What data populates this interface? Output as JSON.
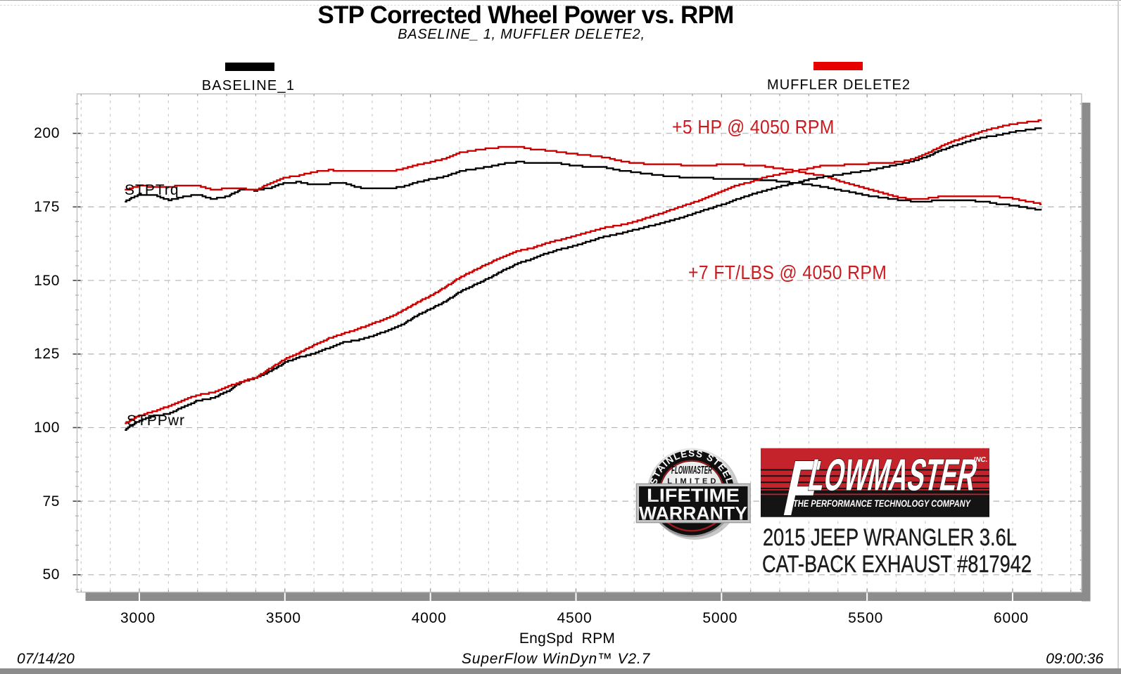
{
  "page": {
    "title": "STP Corrected Wheel Power vs. RPM",
    "subtitle": "BASELINE_ 1, MUFFLER DELETE2,",
    "footer_date": "07/14/20",
    "footer_software": "SuperFlow WinDyn™ V2.7",
    "footer_time": "09:00:36"
  },
  "legend": {
    "items": [
      {
        "label": "BASELINE_1",
        "color": "#000000"
      },
      {
        "label": "MUFFLER DELETE2",
        "color": "#e60000"
      }
    ]
  },
  "annotations": {
    "hp": "+5 HP @ 4050 RPM",
    "torque": "+7 FT/LBS @ 4050 RPM",
    "color": "#cb1b20"
  },
  "curve_labels": {
    "torque": "STPTrq",
    "power": "STPPwr"
  },
  "logo": {
    "brand": "FLOWMASTER",
    "brand_f": "F",
    "brand_rest": "LOWMASTER",
    "inc": "INC.",
    "reg": "®",
    "tagline": "THE PERFORMANCE TECHNOLOGY COMPANY",
    "red": "#c5232b",
    "black": "#141414"
  },
  "badge": {
    "arc_text": "STAINLESS STEEL",
    "brand": "FLOWMASTER",
    "limited": "LIMITED",
    "line1": "LIFETIME",
    "line2": "WARRANTY"
  },
  "product": {
    "line1": "2015 JEEP WRANGLER 3.6L",
    "line2": "CAT-BACK EXHAUST #817942"
  },
  "chart_data": {
    "type": "line",
    "title": "STP Corrected Wheel Power vs. RPM",
    "xlabel": "EngSpd  RPM",
    "ylabel": "",
    "x_range": [
      2786,
      6237
    ],
    "y_range": [
      44.1,
      213.4
    ],
    "x_ticks": [
      3000,
      3500,
      4000,
      4500,
      5000,
      5500,
      6000
    ],
    "x_minor_step": 100,
    "y_ticks": [
      50,
      75,
      100,
      125,
      150,
      175,
      200
    ],
    "y_minor_step": 5,
    "grid": true,
    "legend_position": "top",
    "x": [
      2950,
      3000,
      3050,
      3100,
      3150,
      3200,
      3250,
      3300,
      3350,
      3400,
      3450,
      3500,
      3550,
      3600,
      3650,
      3700,
      3750,
      3800,
      3850,
      3900,
      3950,
      4000,
      4050,
      4100,
      4150,
      4200,
      4250,
      4300,
      4350,
      4400,
      4450,
      4500,
      4550,
      4600,
      4650,
      4700,
      4750,
      4800,
      4850,
      4900,
      4950,
      5000,
      5050,
      5100,
      5150,
      5200,
      5250,
      5300,
      5350,
      5400,
      5450,
      5500,
      5550,
      5600,
      5650,
      5700,
      5750,
      5800,
      5850,
      5900,
      5950,
      6000,
      6050,
      6100
    ],
    "series": [
      {
        "name": "BASELINE_1 STPTrq",
        "unit": "ft-lbs",
        "color": "#000000",
        "values": [
          176.9,
          179.3,
          179.1,
          177.3,
          178.4,
          179.2,
          177.7,
          178.5,
          181.0,
          180.6,
          181.5,
          183.3,
          183.4,
          182.5,
          182.9,
          183.2,
          181.6,
          181.2,
          181.3,
          181.7,
          183.3,
          184.4,
          185.3,
          187.1,
          187.9,
          188.6,
          189.7,
          190.3,
          190.0,
          190.1,
          189.7,
          188.9,
          188.7,
          188.4,
          187.4,
          186.8,
          186.2,
          185.6,
          185.2,
          185.0,
          184.8,
          184.6,
          184.6,
          184.5,
          184.1,
          183.7,
          183.2,
          182.6,
          181.8,
          180.8,
          179.9,
          178.9,
          178.2,
          177.5,
          177.0,
          176.8,
          177.3,
          177.4,
          177.1,
          176.9,
          176.0,
          175.5,
          174.7,
          173.8
        ]
      },
      {
        "name": "MUFFLER DELETE2 STPTrq",
        "unit": "ft-lbs",
        "color": "#cc0000",
        "values": [
          180.7,
          182.3,
          181.7,
          181.8,
          182.4,
          182.3,
          180.8,
          181.3,
          181.2,
          180.8,
          183.0,
          185.0,
          185.7,
          186.9,
          187.5,
          187.3,
          187.0,
          187.2,
          187.0,
          187.8,
          189.2,
          190.2,
          191.5,
          193.4,
          194.2,
          194.9,
          195.3,
          195.5,
          194.5,
          194.2,
          193.5,
          192.9,
          192.4,
          191.8,
          190.7,
          189.9,
          189.6,
          189.4,
          189.3,
          189.1,
          189.1,
          189.4,
          189.6,
          189.0,
          188.8,
          188.0,
          187.3,
          186.3,
          185.6,
          183.9,
          182.6,
          181.1,
          179.8,
          178.4,
          177.6,
          177.8,
          178.5,
          178.8,
          178.8,
          178.8,
          178.4,
          177.9,
          176.9,
          176.0
        ]
      },
      {
        "name": "BASELINE_1 STPPwr",
        "unit": "hp",
        "color": "#000000",
        "values": [
          99.4,
          102.4,
          104.0,
          104.7,
          107.0,
          109.2,
          110.0,
          112.2,
          115.5,
          116.9,
          119.2,
          122.2,
          124.0,
          125.1,
          127.1,
          129.1,
          129.7,
          131.1,
          132.9,
          134.9,
          137.9,
          140.4,
          142.9,
          146.1,
          148.5,
          150.8,
          153.5,
          155.8,
          157.4,
          159.3,
          160.7,
          161.9,
          163.5,
          165.0,
          165.9,
          167.2,
          168.4,
          169.6,
          171.0,
          172.6,
          174.2,
          175.7,
          177.5,
          179.2,
          180.5,
          181.9,
          183.1,
          184.3,
          185.2,
          185.9,
          186.7,
          187.3,
          188.3,
          189.3,
          190.4,
          191.9,
          194.1,
          195.9,
          197.3,
          198.7,
          199.4,
          200.5,
          201.2,
          201.9
        ]
      },
      {
        "name": "MUFFLER DELETE2 STPPwr",
        "unit": "hp",
        "color": "#cc0000",
        "values": [
          101.5,
          104.1,
          105.5,
          107.3,
          109.4,
          111.1,
          111.9,
          113.9,
          115.6,
          117.0,
          120.2,
          123.3,
          125.5,
          128.1,
          130.3,
          132.0,
          133.5,
          135.4,
          137.1,
          139.5,
          142.3,
          144.9,
          147.7,
          151.0,
          153.5,
          155.9,
          158.0,
          160.1,
          161.1,
          162.7,
          164.0,
          165.3,
          166.7,
          168.0,
          168.8,
          169.9,
          171.5,
          173.1,
          174.8,
          176.4,
          178.2,
          180.3,
          182.3,
          183.5,
          185.1,
          186.1,
          187.2,
          188.0,
          189.1,
          189.1,
          189.5,
          189.7,
          190.0,
          190.2,
          191.1,
          193.0,
          195.4,
          197.5,
          199.2,
          200.9,
          202.1,
          203.2,
          203.8,
          204.4
        ]
      }
    ]
  }
}
